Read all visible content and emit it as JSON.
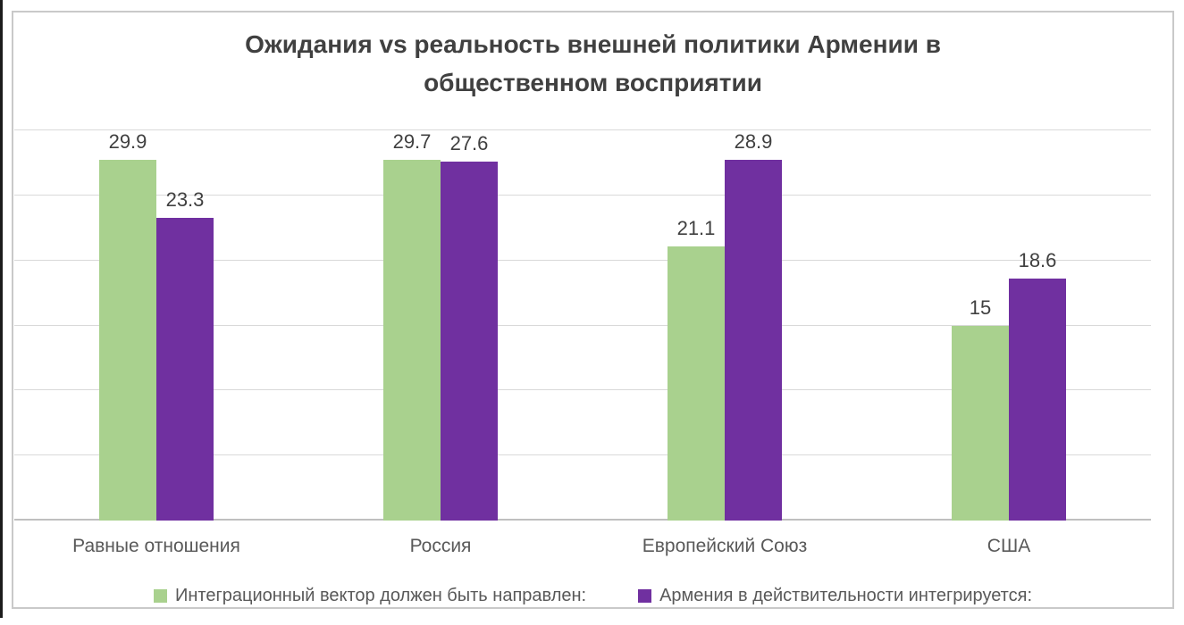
{
  "chart_data": {
    "type": "bar",
    "title": "Ожидания vs реальность внешней политики Армении в общественном восприятии",
    "categories": [
      "Равные отношения",
      "Россия",
      "Европейский Союз",
      "США"
    ],
    "series": [
      {
        "name": "Интеграционный вектор должен быть направлен:",
        "color": "#a9d18e",
        "values": [
          29.9,
          29.7,
          21.1,
          15
        ]
      },
      {
        "name": "Армения в действительности интегрируется:",
        "color": "#7030a0",
        "values": [
          23.3,
          27.6,
          28.9,
          18.6
        ]
      }
    ],
    "xlabel": "",
    "ylabel": "",
    "ylim": [
      0,
      30
    ],
    "gridline_step": 5,
    "grid": true,
    "y_axis_labels_shown": false,
    "legend_position": "bottom"
  },
  "styles": {
    "title_color": "#404040",
    "value_label_color": "#404040",
    "axis_label_color": "#595959",
    "gridline_color": "#d9d9d9",
    "axis_line_color": "#bfbfbf",
    "frame_border_color": "#c9c9c9",
    "series_green": "#a9d18e",
    "series_purple": "#7030a0"
  }
}
